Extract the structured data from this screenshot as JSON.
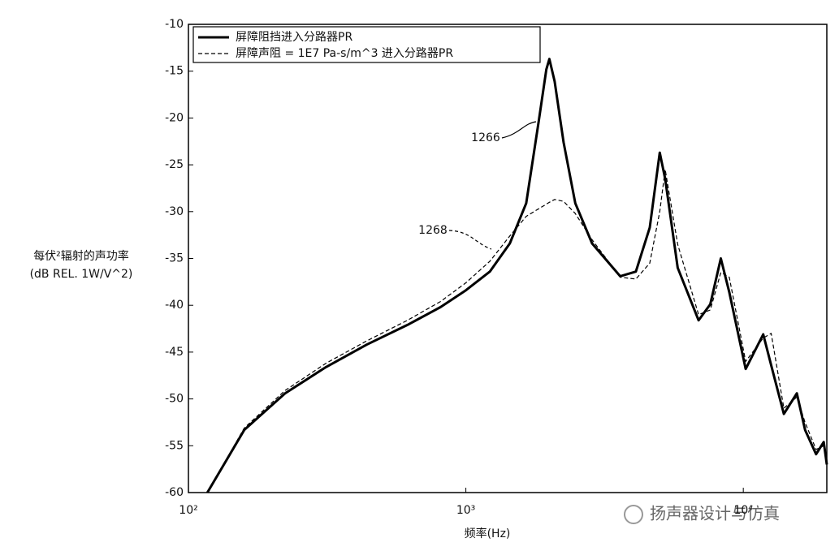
{
  "chart_data": {
    "type": "line",
    "ylabel": [
      "每伏²辐射的声功率",
      "(dB REL. 1W/V^2)"
    ],
    "xlabel": "频率(Hz)",
    "log_x": true,
    "xlim": [
      100,
      20000
    ],
    "xticks": [
      {
        "value": 100,
        "label": "10²"
      },
      {
        "value": 1000,
        "label": "10³"
      },
      {
        "value": 10000,
        "label": "10⁴"
      }
    ],
    "ylim": [
      -60,
      -10
    ],
    "yticks": [
      -10,
      -15,
      -20,
      -25,
      -30,
      -35,
      -40,
      -45,
      -50,
      -55,
      -60
    ],
    "x": [
      117,
      159,
      223,
      313,
      439,
      616,
      810,
      1000,
      1220,
      1440,
      1650,
      1830,
      1950,
      2000,
      2090,
      2250,
      2480,
      2850,
      3600,
      4100,
      4600,
      5000,
      5230,
      5800,
      6900,
      7600,
      8300,
      8900,
      10200,
      11800,
      12600,
      14000,
      15600,
      16700,
      18300,
      19500,
      20000
    ],
    "series": [
      {
        "name": "屏障阻挡进入分路器PR",
        "color": "#000000",
        "dash": false,
        "values": [
          -60,
          -53.3,
          -49.4,
          -46.6,
          -44.2,
          -42.1,
          -40.2,
          -38.4,
          -36.4,
          -33.4,
          -29.1,
          -20.4,
          -14.8,
          -13.7,
          -16.1,
          -22.6,
          -29.1,
          -33.4,
          -36.9,
          -36.4,
          -31.7,
          -23.7,
          -26.5,
          -36.0,
          -41.6,
          -39.9,
          -35.0,
          -38.6,
          -46.8,
          -43.1,
          -46.4,
          -51.6,
          -49.4,
          -53.3,
          -55.9,
          -54.6,
          -57.0
        ]
      },
      {
        "name": "屏障声阻 = 1E7 Pa-s/m^3 进入分路器PR",
        "color": "#000000",
        "dash": true,
        "values": [
          -60,
          -53.1,
          -49.1,
          -46.2,
          -43.8,
          -41.6,
          -39.6,
          -37.6,
          -35.3,
          -32.6,
          -30.5,
          -29.7,
          -29.2,
          -29.0,
          -28.7,
          -28.9,
          -30.2,
          -33.0,
          -37.0,
          -37.2,
          -35.5,
          -30.0,
          -25.5,
          -33.5,
          -41.0,
          -40.5,
          -36.5,
          -37.0,
          -46.0,
          -43.5,
          -43.0,
          -51.0,
          -49.8,
          -52.5,
          -55.4,
          -55.0,
          -57.0
        ]
      }
    ],
    "legend": "upper left",
    "annotations": [
      "1266",
      "1268"
    ],
    "watermark": "扬声器设计与仿真"
  }
}
